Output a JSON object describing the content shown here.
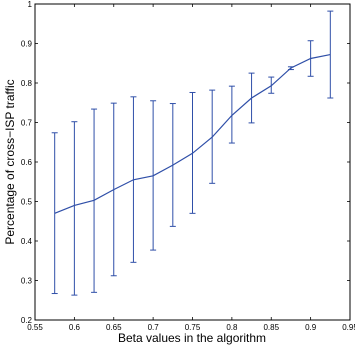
{
  "chart_data": {
    "type": "line",
    "title": "",
    "xlabel": "Beta values in the algorithm",
    "ylabel": "Percentage of cross−ISP traffic",
    "xlim": [
      0.55,
      0.95
    ],
    "ylim": [
      0.2,
      1.0
    ],
    "x_ticks": [
      "0.55",
      "0.6",
      "0.65",
      "0.7",
      "0.75",
      "0.8",
      "0.85",
      "0.9",
      "0.95"
    ],
    "y_ticks": [
      "0.2",
      "0.3",
      "0.4",
      "0.5",
      "0.6",
      "0.7",
      "0.8",
      "0.9",
      "1"
    ],
    "grid": false,
    "line_color": "#2f4fa8",
    "series": [
      {
        "x": [
          0.575,
          0.6,
          0.625,
          0.65,
          0.675,
          0.7,
          0.725,
          0.75,
          0.775,
          0.8,
          0.825,
          0.85,
          0.875,
          0.9,
          0.925
        ],
        "y": [
          0.47,
          0.49,
          0.503,
          0.53,
          0.555,
          0.565,
          0.592,
          0.622,
          0.663,
          0.718,
          0.762,
          0.793,
          0.838,
          0.862,
          0.872
        ],
        "err_low": [
          0.267,
          0.263,
          0.27,
          0.312,
          0.346,
          0.377,
          0.437,
          0.47,
          0.546,
          0.648,
          0.699,
          0.774,
          0.834,
          0.817,
          0.762
        ],
        "err_high": [
          0.674,
          0.702,
          0.734,
          0.749,
          0.765,
          0.755,
          0.748,
          0.776,
          0.782,
          0.792,
          0.825,
          0.815,
          0.841,
          0.907,
          0.982
        ]
      }
    ]
  }
}
